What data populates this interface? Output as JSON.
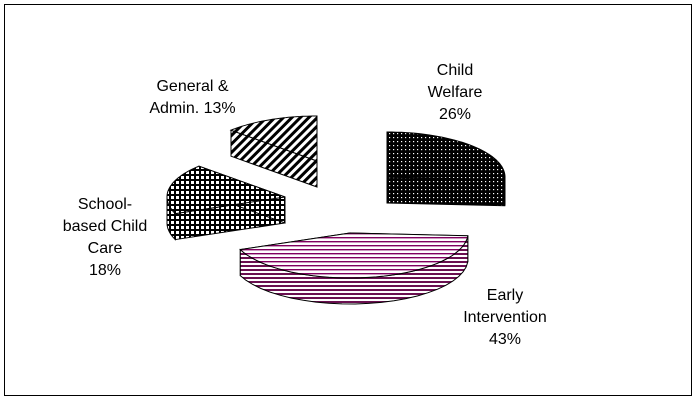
{
  "chart_data": {
    "type": "pie",
    "title": "",
    "legend": "none",
    "slices": [
      {
        "label": "Child\nWelfare\n26%",
        "value": 26,
        "fill_color": "#000000",
        "pattern": "dots"
      },
      {
        "label": "Early\nIntervention\n43%",
        "value": 43,
        "fill_color": "#800060",
        "pattern": "horizontal-stripes"
      },
      {
        "label": "School-\nbased Child\nCare\n18%",
        "value": 18,
        "fill_color": "#000000",
        "pattern": "grid"
      },
      {
        "label": "General &\nAdmin. 13%",
        "value": 13,
        "fill_color": "#000000",
        "pattern": "diagonal-hatch"
      }
    ]
  }
}
